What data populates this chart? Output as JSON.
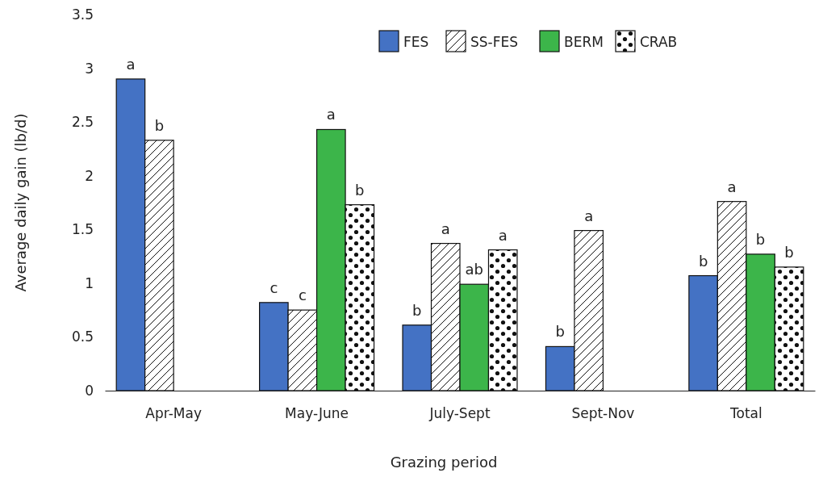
{
  "chart_data": {
    "type": "bar",
    "xlabel": "Grazing period",
    "ylabel": "Average daily gain (lb/d)",
    "categories": [
      "Apr-May",
      "May-June",
      "July-Sept",
      "Sept-Nov",
      "Total"
    ],
    "series": [
      {
        "name": "FES",
        "color": "#4472c4",
        "values": [
          2.9,
          0.82,
          0.61,
          0.41,
          1.07
        ],
        "value_labels": [
          "a",
          "c",
          "b",
          "b",
          "b"
        ]
      },
      {
        "name": "SS-FES",
        "color": "#111111",
        "values": [
          2.33,
          0.75,
          1.37,
          1.49,
          1.76
        ],
        "value_labels": [
          "b",
          "c",
          "a",
          "a",
          "a"
        ]
      },
      {
        "name": "BERM",
        "color": "#3cb54a",
        "values": [
          null,
          2.43,
          0.99,
          null,
          1.27
        ],
        "value_labels": [
          null,
          "a",
          "ab",
          null,
          "b"
        ]
      },
      {
        "name": "CRAB",
        "color": "#111111",
        "values": [
          null,
          1.73,
          1.31,
          null,
          1.15
        ],
        "value_labels": [
          null,
          "b",
          "a",
          null,
          "b"
        ]
      }
    ],
    "ylim": [
      0,
      3.5
    ],
    "yticks": [
      0,
      0.5,
      1,
      1.5,
      2,
      2.5,
      3,
      3.5
    ],
    "legend": "top right"
  }
}
